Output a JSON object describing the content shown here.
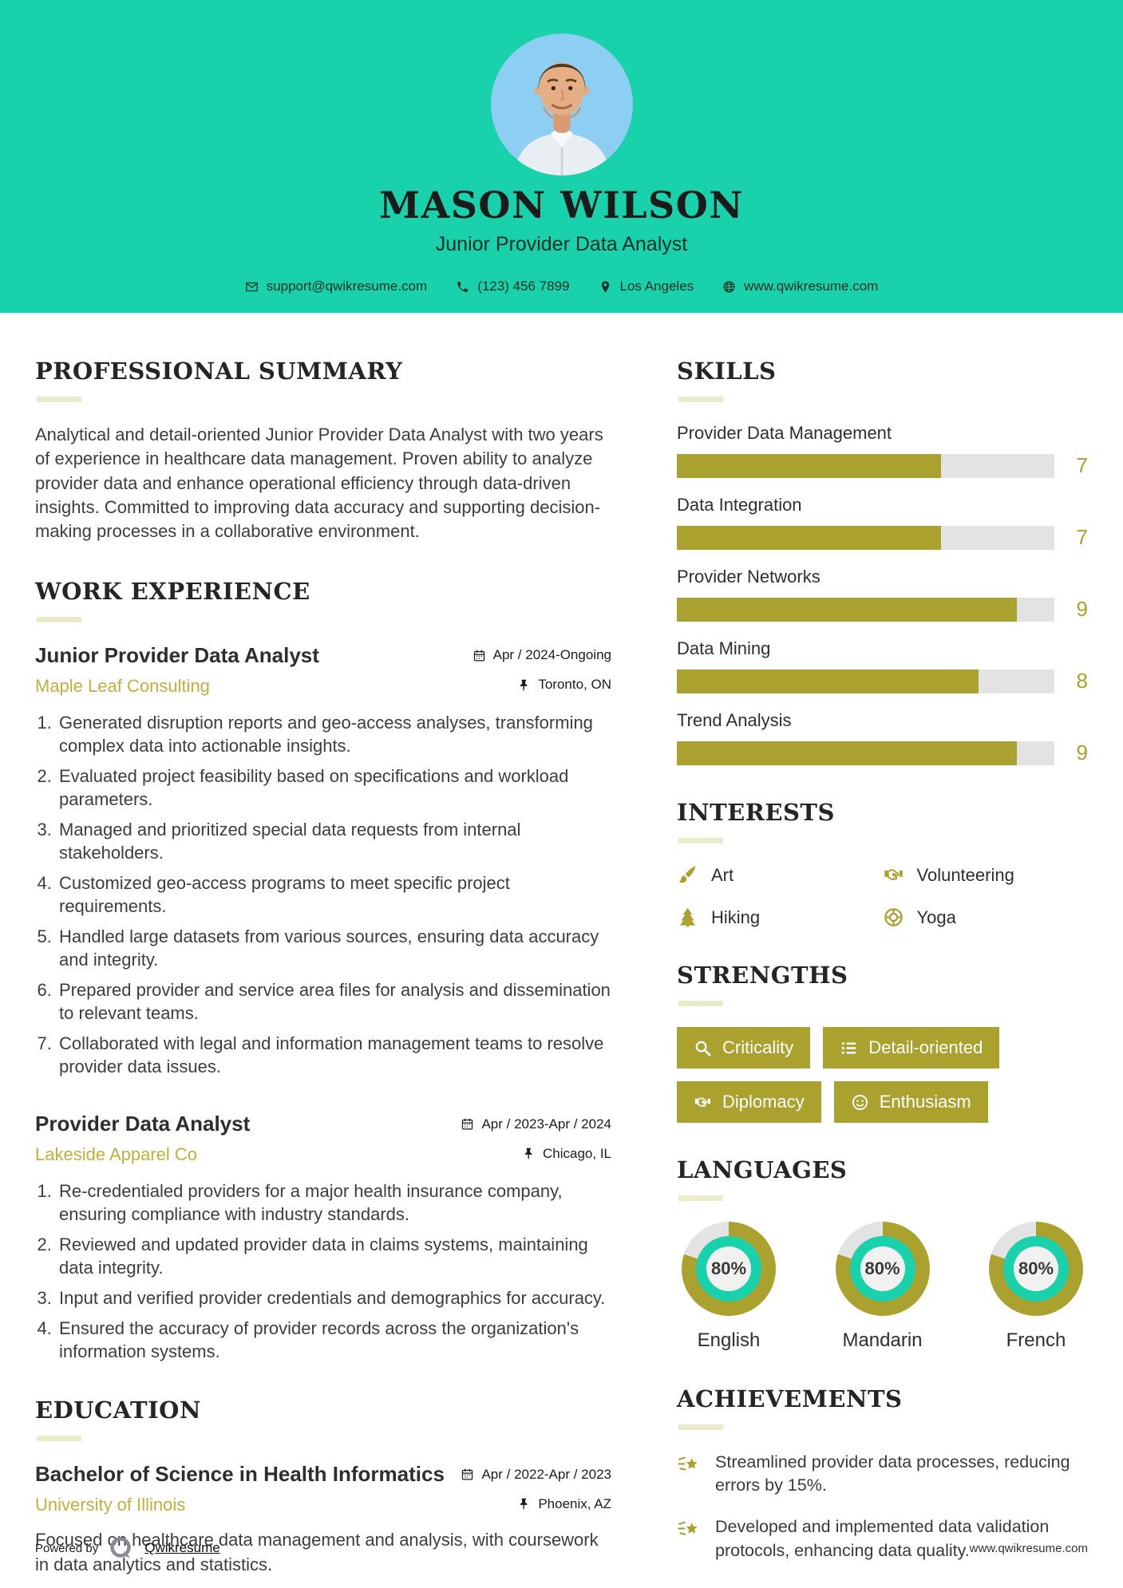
{
  "colors": {
    "teal": "#19d2ab",
    "olive": "#aaa12f",
    "track": "#e3e3e3",
    "company_text": "#c0b13c",
    "rule": "#e9ecc9",
    "avatar_bg": "#8dcff2"
  },
  "header": {
    "name": "MASON WILSON",
    "title": "Junior Provider Data Analyst",
    "contact": {
      "email": "support@qwikresume.com",
      "phone": "(123) 456 7899",
      "location": "Los Angeles",
      "website": "www.qwikresume.com"
    }
  },
  "summary": {
    "heading": "PROFESSIONAL SUMMARY",
    "text": "Analytical and detail-oriented Junior Provider Data Analyst with two years of experience in healthcare data management. Proven ability to analyze provider data and enhance operational efficiency through data-driven insights. Committed to improving data accuracy and supporting decision-making processes in a collaborative environment."
  },
  "work": {
    "heading": "WORK EXPERIENCE",
    "jobs": [
      {
        "title": "Junior Provider Data Analyst",
        "company": "Maple Leaf Consulting",
        "dates": "Apr / 2024-Ongoing",
        "location": "Toronto, ON",
        "bullets": [
          "Generated disruption reports and geo-access analyses, transforming complex data into actionable insights.",
          "Evaluated project feasibility based on specifications and workload parameters.",
          "Managed and prioritized special data requests from internal stakeholders.",
          "Customized geo-access programs to meet specific project requirements.",
          "Handled large datasets from various sources, ensuring data accuracy and integrity.",
          "Prepared provider and service area files for analysis and dissemination to relevant teams.",
          "Collaborated with legal and information management teams to resolve provider data issues."
        ]
      },
      {
        "title": "Provider Data Analyst",
        "company": "Lakeside Apparel Co",
        "dates": "Apr / 2023-Apr / 2024",
        "location": "Chicago, IL",
        "bullets": [
          "Re-credentialed providers for a major health insurance company, ensuring compliance with industry standards.",
          "Reviewed and updated provider data in claims systems, maintaining data integrity.",
          "Input and verified provider credentials and demographics for accuracy.",
          "Ensured the accuracy of provider records across the organization's information systems."
        ]
      }
    ]
  },
  "education": {
    "heading": "EDUCATION",
    "degree": "Bachelor of Science in Health Informatics",
    "school": "University of Illinois",
    "dates": "Apr / 2022-Apr / 2023",
    "location": "Phoenix, AZ",
    "description": "Focused on healthcare data management and analysis, with coursework in data analytics and statistics."
  },
  "skills": {
    "heading": "SKILLS",
    "scale_max": 10,
    "items": [
      {
        "name": "Provider Data Management",
        "level": 7
      },
      {
        "name": "Data Integration",
        "level": 7
      },
      {
        "name": "Provider Networks",
        "level": 9
      },
      {
        "name": "Data Mining",
        "level": 8
      },
      {
        "name": "Trend Analysis",
        "level": 9
      }
    ]
  },
  "interests": {
    "heading": "INTERESTS",
    "items": [
      {
        "label": "Art",
        "icon": "paintbrush-icon"
      },
      {
        "label": "Volunteering",
        "icon": "handshake-icon"
      },
      {
        "label": "Hiking",
        "icon": "tree-icon"
      },
      {
        "label": "Yoga",
        "icon": "lifebuoy-icon"
      }
    ]
  },
  "strengths": {
    "heading": "STRENGTHS",
    "items": [
      {
        "label": "Criticality",
        "icon": "search-icon"
      },
      {
        "label": "Detail-oriented",
        "icon": "list-icon"
      },
      {
        "label": "Diplomacy",
        "icon": "handshake-icon"
      },
      {
        "label": "Enthusiasm",
        "icon": "smiley-icon"
      }
    ]
  },
  "languages": {
    "heading": "LANGUAGES",
    "items": [
      {
        "label": "English",
        "percent": 80,
        "percent_label": "80%"
      },
      {
        "label": "Mandarin",
        "percent": 80,
        "percent_label": "80%"
      },
      {
        "label": "French",
        "percent": 80,
        "percent_label": "80%"
      }
    ]
  },
  "achievements": {
    "heading": "ACHIEVEMENTS",
    "items": [
      {
        "text": "Streamlined provider data processes, reducing errors by 15%.",
        "icon": "shooting-star-icon"
      },
      {
        "text": "Developed and implemented data validation protocols, enhancing data quality.",
        "icon": "shooting-star-icon"
      }
    ]
  },
  "footer": {
    "powered_by": "Powered by",
    "brand": "Qwikresume",
    "site": "www.qwikresume.com"
  }
}
